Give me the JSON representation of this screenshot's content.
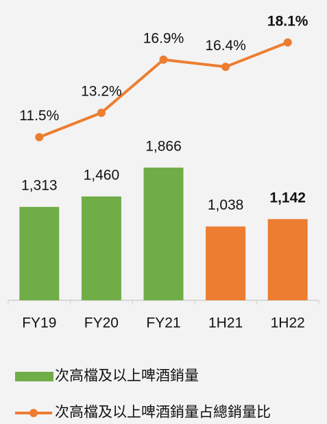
{
  "chart_data": {
    "type": "bar",
    "categories": [
      "FY19",
      "FY20",
      "FY21",
      "1H21",
      "1H22"
    ],
    "series": [
      {
        "name": "次高檔及以上啤酒銷量",
        "type": "bar",
        "color": "#70ad47",
        "colors": [
          "#70ad47",
          "#70ad47",
          "#70ad47",
          "#ed7d31",
          "#ed7d31"
        ],
        "values": [
          1313,
          1460,
          1866,
          1038,
          1142
        ],
        "value_labels": [
          "1,313",
          "1,460",
          "1,866",
          "1,038",
          "1,142"
        ]
      },
      {
        "name": "次高檔及以上啤酒銷量占總銷量比",
        "type": "line",
        "axis": "y2",
        "color": "#ed7d31",
        "values": [
          11.5,
          13.2,
          16.9,
          16.4,
          18.1
        ],
        "value_labels": [
          "11.5%",
          "13.2%",
          "16.9%",
          "16.4%",
          "18.1%"
        ]
      }
    ],
    "ylim": [
      0,
      2000
    ],
    "y2lim": [
      10,
      20
    ],
    "highlight": {
      "index": 4,
      "color": "#1f3a6e"
    }
  }
}
